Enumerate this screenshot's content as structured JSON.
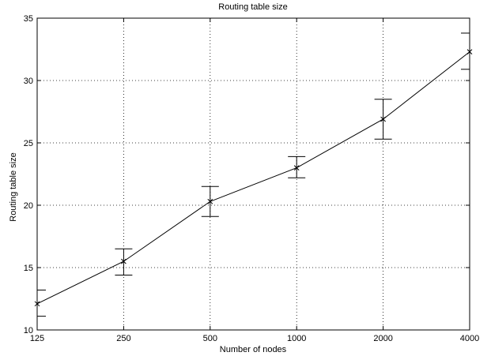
{
  "chart_data": {
    "type": "line",
    "title": "Routing table size",
    "xlabel": "Number of nodes",
    "ylabel": "Routing table size",
    "x_scale": "log2",
    "categories": [
      "125",
      "250",
      "500",
      "1000",
      "2000",
      "4000"
    ],
    "x": [
      125,
      250,
      500,
      1000,
      2000,
      4000
    ],
    "ylim": [
      10,
      35
    ],
    "yticks": [
      10,
      15,
      20,
      25,
      30,
      35
    ],
    "grid": true,
    "series": [
      {
        "values": [
          12.1,
          15.5,
          20.3,
          23.0,
          26.9,
          32.3
        ],
        "err_low": [
          11.1,
          14.4,
          19.1,
          22.2,
          25.3,
          30.9
        ],
        "err_high": [
          13.2,
          16.5,
          21.5,
          23.9,
          28.5,
          33.8
        ]
      }
    ]
  }
}
